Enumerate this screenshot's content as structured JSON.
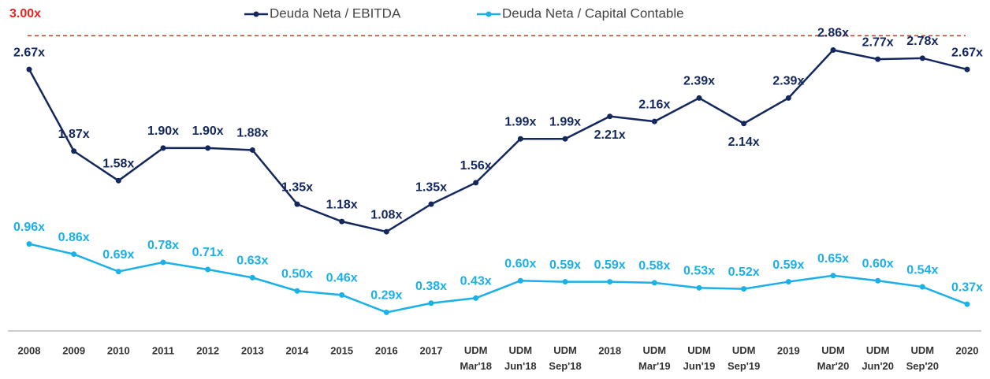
{
  "chart_data": {
    "type": "line",
    "categories": [
      "2008",
      "2009",
      "2010",
      "2011",
      "2012",
      "2013",
      "2014",
      "2015",
      "2016",
      "2017",
      "UDM Mar'18",
      "UDM Jun'18",
      "UDM Sep'18",
      "2018",
      "UDM Mar'19",
      "UDM Jun'19",
      "UDM Sep'19",
      "2019",
      "UDM Mar'20",
      "UDM Jun'20",
      "UDM Sep'20",
      "2020"
    ],
    "series": [
      {
        "name": "Deuda Neta / EBITDA",
        "color": "#14285e",
        "values": [
          2.67,
          1.87,
          1.58,
          1.9,
          1.9,
          1.88,
          1.35,
          1.18,
          1.08,
          1.35,
          1.56,
          1.99,
          1.99,
          2.21,
          2.16,
          2.39,
          2.14,
          2.39,
          2.86,
          2.77,
          2.78,
          2.67
        ],
        "value_labels": [
          "2.67x",
          "1.87x",
          "1.58x",
          "1.90x",
          "1.90x",
          "1.88x",
          "1.35x",
          "1.18x",
          "1.08x",
          "1.35x",
          "1.56x",
          "1.99x",
          "1.99x",
          "2.21x",
          "2.16x",
          "2.39x",
          "2.14x",
          "2.39x",
          "2.86x",
          "2.77x",
          "2.78x",
          "2.67x"
        ]
      },
      {
        "name": "Deuda Neta / Capital Contable",
        "color": "#1ab0e8",
        "values": [
          0.96,
          0.86,
          0.69,
          0.78,
          0.71,
          0.63,
          0.5,
          0.46,
          0.29,
          0.38,
          0.43,
          0.6,
          0.59,
          0.59,
          0.58,
          0.53,
          0.52,
          0.59,
          0.65,
          0.6,
          0.54,
          0.37
        ],
        "value_labels": [
          "0.96x",
          "0.86x",
          "0.69x",
          "0.78x",
          "0.71x",
          "0.63x",
          "0.50x",
          "0.46x",
          "0.29x",
          "0.38x",
          "0.43x",
          "0.60x",
          "0.59x",
          "0.59x",
          "0.58x",
          "0.53x",
          "0.52x",
          "0.59x",
          "0.65x",
          "0.60x",
          "0.54x",
          "0.37x"
        ]
      }
    ],
    "reference_line": {
      "value": 3,
      "label": "3.00x",
      "color": "#e52521"
    },
    "ylim": [
      0,
      3.35
    ]
  }
}
